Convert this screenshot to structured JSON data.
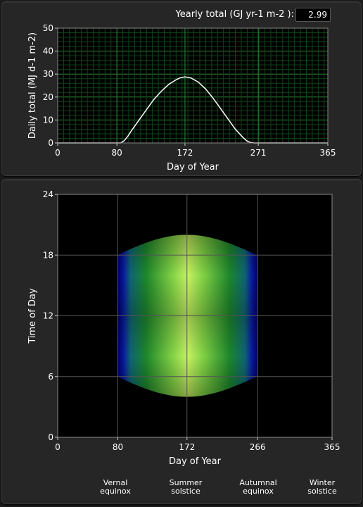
{
  "yearly_total": {
    "label": "Yearly total (GJ yr-1 m-2  ):",
    "value": "2.99"
  },
  "seasons": [
    {
      "label": "Vernal\nequinox"
    },
    {
      "label": "Summer\nsolstice"
    },
    {
      "label": "Autumnal\nequinox"
    },
    {
      "label": "Winter\nsolstice"
    }
  ],
  "chart_data": [
    {
      "type": "line",
      "xlabel": "Day of Year",
      "ylabel": "Daily total (MJ  d-1 m-2)",
      "xlim": [
        0,
        365
      ],
      "ylim": [
        0,
        50
      ],
      "x_ticks": [
        0,
        80,
        172,
        271,
        365
      ],
      "y_ticks": [
        0,
        10,
        20,
        30,
        40,
        50
      ],
      "grid": true,
      "series": [
        {
          "x": [
            0,
            80,
            85,
            90,
            95,
            100,
            110,
            120,
            130,
            140,
            150,
            160,
            165,
            172,
            180,
            190,
            200,
            210,
            220,
            230,
            240,
            250,
            255,
            260,
            265,
            271,
            365
          ],
          "y": [
            0,
            0,
            0,
            1,
            3,
            5.5,
            10,
            14.5,
            19,
            22.5,
            25.5,
            27.5,
            28.3,
            28.8,
            28.3,
            26.5,
            23.5,
            19.5,
            15,
            10.5,
            6,
            2.5,
            1,
            0.2,
            0,
            0,
            0
          ]
        }
      ]
    },
    {
      "type": "heatmap",
      "xlabel": "Day of Year",
      "ylabel": "Time of Day",
      "xlim": [
        0,
        365
      ],
      "ylim": [
        0,
        24
      ],
      "x_ticks": [
        0,
        80,
        172,
        266,
        365
      ],
      "y_ticks": [
        0,
        6,
        12,
        18,
        24
      ],
      "grid": true,
      "daylight_days": [
        80,
        266
      ],
      "peak_day": 172,
      "sunrise_at_equinox": 6.0,
      "sunset_at_equinox": 18.0,
      "sunrise_at_solstice": 4.0,
      "sunset_at_solstice": 20.0,
      "colors": [
        "#000080",
        "#1f8a2c",
        "#d6ff66"
      ]
    }
  ]
}
